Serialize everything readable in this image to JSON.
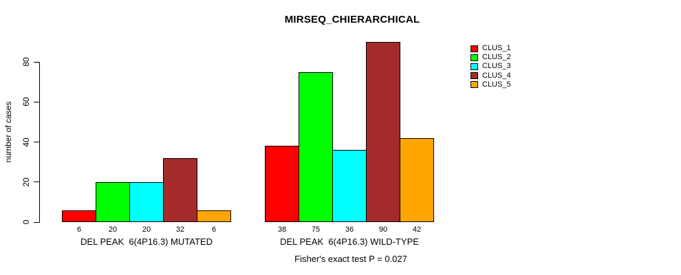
{
  "chart_data": {
    "type": "bar",
    "title": "MIRSEQ_CHIERARCHICAL",
    "ylabel": "number of cases",
    "xlabel": "",
    "yticks": [
      0,
      20,
      40,
      60,
      80
    ],
    "ylim": [
      0,
      93
    ],
    "grid": false,
    "legend_position": "right",
    "categories": [
      "DEL PEAK  6(4P16.3) MUTATED",
      "DEL PEAK  6(4P16.3) WILD-TYPE"
    ],
    "series": [
      {
        "name": "CLUS_1",
        "color": "#FF0000",
        "values": [
          6,
          38
        ]
      },
      {
        "name": "CLUS_2",
        "color": "#00FF00",
        "values": [
          20,
          75
        ]
      },
      {
        "name": "CLUS_3",
        "color": "#00FFFF",
        "values": [
          20,
          36
        ]
      },
      {
        "name": "CLUS_4",
        "color": "#A52A2A",
        "values": [
          32,
          90
        ]
      },
      {
        "name": "CLUS_5",
        "color": "#FFA500",
        "values": [
          6,
          42
        ]
      }
    ],
    "bar_labels": [
      [
        "6",
        "20",
        "20",
        "32",
        "6"
      ],
      [
        "38",
        "75",
        "36",
        "90",
        "42"
      ]
    ],
    "annotation": "Fisher's exact test P = 0.027"
  }
}
